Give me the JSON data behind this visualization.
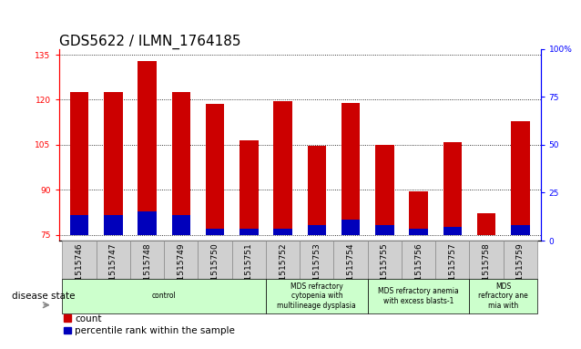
{
  "title": "GDS5622 / ILMN_1764185",
  "samples": [
    "GSM1515746",
    "GSM1515747",
    "GSM1515748",
    "GSM1515749",
    "GSM1515750",
    "GSM1515751",
    "GSM1515752",
    "GSM1515753",
    "GSM1515754",
    "GSM1515755",
    "GSM1515756",
    "GSM1515757",
    "GSM1515758",
    "GSM1515759"
  ],
  "count_values": [
    122.5,
    122.5,
    133.0,
    122.5,
    118.5,
    106.5,
    119.5,
    104.5,
    119.0,
    105.0,
    89.5,
    106.0,
    82.0,
    113.0
  ],
  "percentile_values": [
    10,
    10,
    12,
    10,
    3,
    3,
    3,
    5,
    8,
    5,
    3,
    4,
    0,
    5
  ],
  "ylim_left": [
    73,
    137
  ],
  "ylim_right": [
    0,
    100
  ],
  "yticks_left": [
    75,
    90,
    105,
    120,
    135
  ],
  "yticks_right": [
    0,
    25,
    50,
    75,
    100
  ],
  "bar_color_red": "#cc0000",
  "bar_color_blue": "#0000bb",
  "bar_width": 0.55,
  "disease_groups": [
    {
      "label": "control",
      "start": 0,
      "end": 6,
      "color": "#ccffcc"
    },
    {
      "label": "MDS refractory\ncytopenia with\nmultilineage dysplasia",
      "start": 6,
      "end": 9,
      "color": "#ccffcc"
    },
    {
      "label": "MDS refractory anemia\nwith excess blasts-1",
      "start": 9,
      "end": 12,
      "color": "#ccffcc"
    },
    {
      "label": "MDS\nrefractory ane\nmia with",
      "start": 12,
      "end": 14,
      "color": "#ccffcc"
    }
  ],
  "legend_count_label": "count",
  "legend_pct_label": "percentile rank within the sample",
  "disease_state_label": "disease state",
  "title_fontsize": 11,
  "tick_fontsize": 6.5,
  "label_fontsize": 7.5,
  "bar_bottom": 75.0
}
